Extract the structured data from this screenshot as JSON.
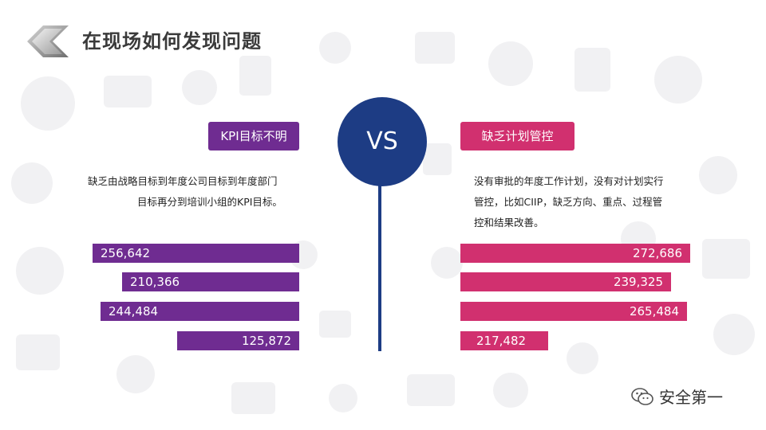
{
  "title": "在现场如何发现问题",
  "vs_label": "VS",
  "left": {
    "tag": "KPI目标不明",
    "desc_line1": "缺乏由战略目标到年度公司目标到年度部门",
    "desc_line2": "目标再分到培训小组的KPI目标。",
    "bars": [
      256642,
      210366,
      244484,
      125872
    ],
    "bar_labels": [
      "256,642",
      "210,366",
      "244,484",
      "125,872"
    ],
    "color": "#6f2c91"
  },
  "right": {
    "tag": "缺乏计划管控",
    "desc_lines": [
      "没有审批的年度工作计划，没有对计划实行",
      "管控，比如CIIP，缺乏方向、重点、过程管",
      "控和结果改善。"
    ],
    "bars": [
      272686,
      239325,
      265484,
      217482
    ],
    "bar_labels": [
      "272,686",
      "239,325",
      "265,484",
      "217,482"
    ],
    "color": "#d1306f"
  },
  "watermark": "安全第一",
  "accent_color": "#1d3c84"
}
